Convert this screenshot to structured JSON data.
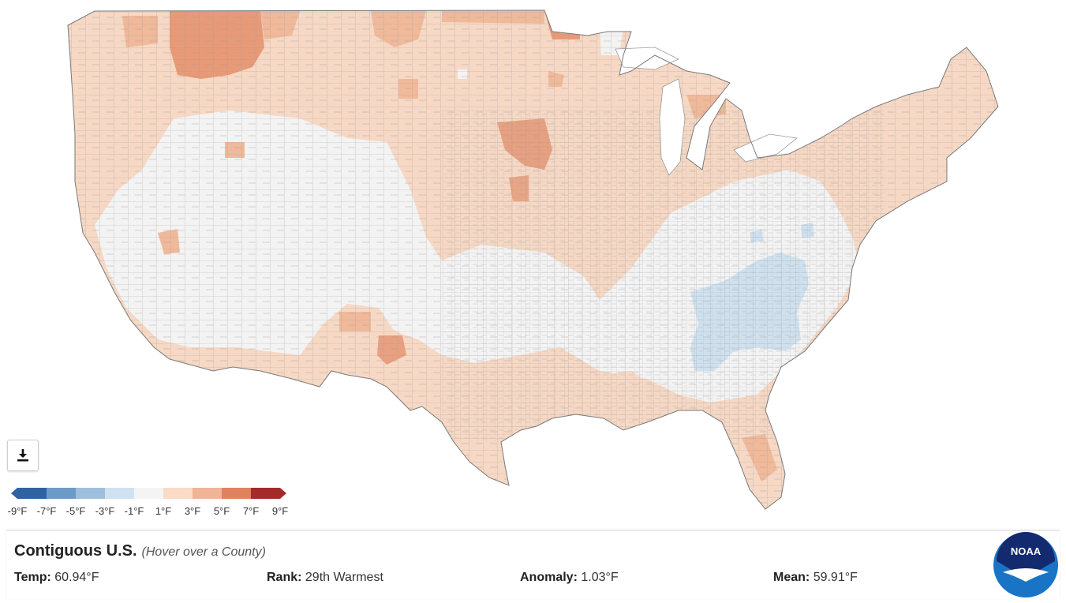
{
  "map": {
    "colors": {
      "neutral": "#f3f3f3",
      "border": "#8c8c8c",
      "warm1": "#f6d8c4",
      "warm2": "#f0b99a",
      "warm3": "#e0845f",
      "cool1": "#cfe1ef",
      "water": "#ffffff"
    }
  },
  "download": {
    "icon": "download-icon"
  },
  "legend": {
    "labels": [
      "-9°F",
      "-7°F",
      "-5°F",
      "-3°F",
      "-1°F",
      "1°F",
      "3°F",
      "5°F",
      "7°F",
      "9°F"
    ],
    "colors": [
      "#2f62a0",
      "#6d9bc9",
      "#9dbfdd",
      "#d0e2f1",
      "#f4f4f4",
      "#fadbc6",
      "#f0b497",
      "#e0825e",
      "#a52a2a"
    ]
  },
  "info": {
    "title": "Contiguous U.S.",
    "hint": "(Hover over a County)",
    "temp_label": "Temp:",
    "temp_value": "60.94°F",
    "rank_label": "Rank:",
    "rank_value": "29th Warmest",
    "anomaly_label": "Anomaly:",
    "anomaly_value": "1.03°F",
    "mean_label": "Mean:",
    "mean_value": "59.91°F"
  },
  "logo": {
    "text": "NOAA"
  }
}
